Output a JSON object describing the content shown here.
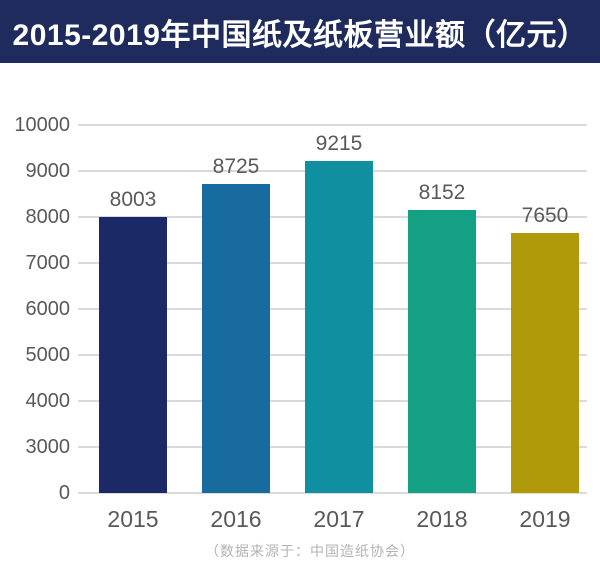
{
  "header": {
    "title": "2015-2019年中国纸及纸板营业额（亿元）",
    "bg_color": "#1e2b5c",
    "text_color": "#ffffff"
  },
  "chart_data": {
    "type": "bar",
    "title": "2015-2019年中国纸及纸板营业额（亿元）",
    "categories": [
      "2015",
      "2016",
      "2017",
      "2018",
      "2019"
    ],
    "values": [
      8003,
      8725,
      9215,
      8152,
      7650
    ],
    "bar_colors": [
      "#1b2a66",
      "#176b9e",
      "#0f8fa0",
      "#13a083",
      "#b0990a"
    ],
    "y_ticks": [
      "10000",
      "9000",
      "8000",
      "7000",
      "6000",
      "5000",
      "4000",
      "3000",
      "0"
    ],
    "y_axis_unit_per_step": 1000,
    "y_axis_broken_below": 3000,
    "ylim": [
      0,
      10000
    ],
    "grid": true,
    "legend_position": "none",
    "axis_text_color": "#595959",
    "value_label_color": "#595959",
    "grid_color": "#dadada"
  },
  "footer": {
    "source_text": "（数据来源于：中国造纸协会）",
    "text_color": "#b3b3b3"
  }
}
